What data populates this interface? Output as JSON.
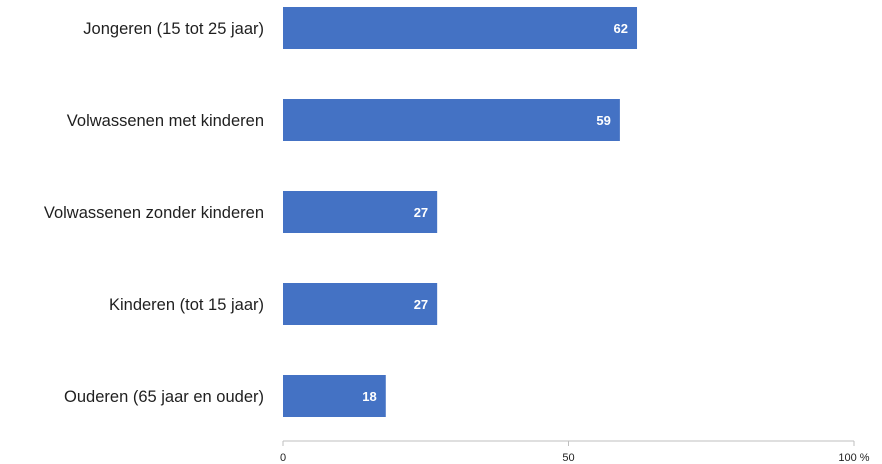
{
  "chart_data": {
    "type": "bar",
    "orientation": "horizontal",
    "categories": [
      "Jongeren (15 tot 25 jaar)",
      "Volwassenen met kinderen",
      "Volwassenen zonder kinderen",
      "Kinderen (tot 15 jaar)",
      "Ouderen (65 jaar en ouder)"
    ],
    "values": [
      62,
      59,
      27,
      27,
      18
    ],
    "data_labels": [
      "62",
      "59",
      "27",
      "27",
      "18"
    ],
    "xlim": [
      0,
      100
    ],
    "x_ticks": [
      0,
      50,
      100
    ],
    "x_tick_labels": [
      "0",
      "50",
      "100 %"
    ],
    "title": "",
    "xlabel": "",
    "ylabel": "",
    "grid": false,
    "legend": "none",
    "bar_color": "#4472c4",
    "label_color": "#ffffff",
    "axis_color": "#bfbfbf"
  }
}
